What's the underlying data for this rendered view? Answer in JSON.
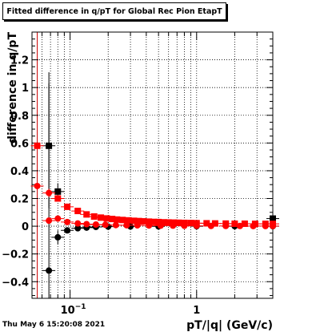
{
  "title": "Fitted difference in q/pT for Global Rec Pion EtapT",
  "timestamp": "Thu May  6 15:20:08 2021",
  "chart_data": {
    "type": "scatter",
    "title": "Fitted difference in q/pT for Global Rec Pion EtapT",
    "xlabel": "pT/|q| (GeV/c)",
    "ylabel": "difference in q/pT",
    "x_scale": "log",
    "xlim": [
      0.05,
      4.0
    ],
    "ylim": [
      -0.52,
      1.4
    ],
    "y_ticks": [
      -0.4,
      -0.2,
      0,
      0.2,
      0.4,
      0.6,
      0.8,
      1,
      1.2
    ],
    "y_tick_labels": [
      "−0.4",
      "−0.2",
      "0",
      "0.2",
      "0.4",
      "0.6",
      "0.8",
      "1",
      "1.2"
    ],
    "x_major_ticks": [
      0.1,
      1
    ],
    "x_major_tick_labels": [
      "10−1",
      "1"
    ],
    "vertical_line_x": 0.055,
    "grid": true,
    "colors": {
      "black": "#000000",
      "red": "#ff0000",
      "vline": "#cc0000"
    },
    "series": [
      {
        "marker": "square",
        "color": "#000000",
        "points": [
          {
            "x": 0.068,
            "y": 0.58,
            "err": 0.45
          },
          {
            "x": 0.08,
            "y": 0.25,
            "err": 0.06
          },
          {
            "x": 4.0,
            "y": 0.055,
            "err": 0.01
          }
        ]
      },
      {
        "marker": "circle",
        "color": "#000000",
        "points": [
          {
            "x": 0.068,
            "y": -0.32,
            "err": 1.43
          },
          {
            "x": 0.08,
            "y": -0.08,
            "err": 0.05
          },
          {
            "x": 0.095,
            "y": -0.03,
            "err": 0.02
          },
          {
            "x": 0.115,
            "y": -0.015,
            "err": 0.01
          },
          {
            "x": 0.135,
            "y": -0.01,
            "err": 0.005
          },
          {
            "x": 0.16,
            "y": -0.005,
            "err": 0.005
          },
          {
            "x": 0.2,
            "y": -0.003,
            "err": 0.003
          },
          {
            "x": 0.3,
            "y": -0.002,
            "err": 0.002
          },
          {
            "x": 0.5,
            "y": -0.001,
            "err": 0.001
          },
          {
            "x": 1.0,
            "y": 0.0,
            "err": 0.001
          },
          {
            "x": 2.0,
            "y": 0.0,
            "err": 0.001
          },
          {
            "x": 4.0,
            "y": 0.0,
            "err": 0.001
          }
        ]
      },
      {
        "marker": "square",
        "color": "#ff0000",
        "points": [
          {
            "x": 0.055,
            "y": 0.58,
            "err": 0.02
          },
          {
            "x": 0.08,
            "y": 0.2,
            "err": 0.02
          },
          {
            "x": 0.095,
            "y": 0.14,
            "err": 0.015
          },
          {
            "x": 0.115,
            "y": 0.11,
            "err": 0.01
          },
          {
            "x": 0.135,
            "y": 0.085,
            "err": 0.01
          },
          {
            "x": 0.155,
            "y": 0.07,
            "err": 0.008
          },
          {
            "x": 0.175,
            "y": 0.062,
            "err": 0.006
          },
          {
            "x": 0.195,
            "y": 0.056,
            "err": 0.005
          },
          {
            "x": 0.215,
            "y": 0.052,
            "err": 0.005
          },
          {
            "x": 0.235,
            "y": 0.048,
            "err": 0.004
          },
          {
            "x": 0.26,
            "y": 0.045,
            "err": 0.004
          },
          {
            "x": 0.29,
            "y": 0.042,
            "err": 0.004
          },
          {
            "x": 0.32,
            "y": 0.039,
            "err": 0.003
          },
          {
            "x": 0.35,
            "y": 0.037,
            "err": 0.003
          },
          {
            "x": 0.38,
            "y": 0.035,
            "err": 0.003
          },
          {
            "x": 0.42,
            "y": 0.033,
            "err": 0.003
          },
          {
            "x": 0.46,
            "y": 0.031,
            "err": 0.003
          },
          {
            "x": 0.5,
            "y": 0.03,
            "err": 0.002
          },
          {
            "x": 0.55,
            "y": 0.028,
            "err": 0.002
          },
          {
            "x": 0.6,
            "y": 0.027,
            "err": 0.002
          },
          {
            "x": 0.66,
            "y": 0.026,
            "err": 0.002
          },
          {
            "x": 0.72,
            "y": 0.025,
            "err": 0.002
          },
          {
            "x": 0.8,
            "y": 0.024,
            "err": 0.002
          },
          {
            "x": 0.9,
            "y": 0.023,
            "err": 0.002
          },
          {
            "x": 1.0,
            "y": 0.022,
            "err": 0.002
          },
          {
            "x": 1.2,
            "y": 0.021,
            "err": 0.002
          },
          {
            "x": 1.4,
            "y": 0.02,
            "err": 0.002
          },
          {
            "x": 1.7,
            "y": 0.019,
            "err": 0.002
          },
          {
            "x": 2.0,
            "y": 0.018,
            "err": 0.002
          },
          {
            "x": 2.4,
            "y": 0.018,
            "err": 0.002
          },
          {
            "x": 2.9,
            "y": 0.017,
            "err": 0.002
          },
          {
            "x": 3.5,
            "y": 0.017,
            "err": 0.002
          },
          {
            "x": 4.0,
            "y": 0.017,
            "err": 0.002
          }
        ]
      },
      {
        "marker": "circle",
        "color": "#ff0000",
        "points": [
          {
            "x": 0.055,
            "y": 0.29,
            "err": 0.02
          },
          {
            "x": 0.068,
            "y": 0.24,
            "err": 0.03
          },
          {
            "x": 0.068,
            "y": 0.04,
            "err": 0.02
          },
          {
            "x": 0.08,
            "y": 0.055,
            "err": 0.015
          },
          {
            "x": 0.095,
            "y": 0.03,
            "err": 0.01
          },
          {
            "x": 0.115,
            "y": 0.02,
            "err": 0.008
          },
          {
            "x": 0.135,
            "y": 0.015,
            "err": 0.006
          },
          {
            "x": 0.16,
            "y": 0.012,
            "err": 0.005
          },
          {
            "x": 0.19,
            "y": 0.01,
            "err": 0.004
          },
          {
            "x": 0.23,
            "y": 0.008,
            "err": 0.003
          },
          {
            "x": 0.28,
            "y": 0.007,
            "err": 0.003
          },
          {
            "x": 0.34,
            "y": 0.006,
            "err": 0.002
          },
          {
            "x": 0.42,
            "y": 0.005,
            "err": 0.002
          },
          {
            "x": 0.52,
            "y": 0.004,
            "err": 0.002
          },
          {
            "x": 0.65,
            "y": 0.004,
            "err": 0.002
          },
          {
            "x": 0.8,
            "y": 0.003,
            "err": 0.002
          },
          {
            "x": 1.0,
            "y": 0.003,
            "err": 0.001
          },
          {
            "x": 1.3,
            "y": 0.002,
            "err": 0.001
          },
          {
            "x": 1.7,
            "y": 0.002,
            "err": 0.001
          },
          {
            "x": 2.2,
            "y": 0.002,
            "err": 0.001
          },
          {
            "x": 2.8,
            "y": 0.001,
            "err": 0.001
          },
          {
            "x": 3.5,
            "y": 0.001,
            "err": 0.001
          },
          {
            "x": 4.0,
            "y": 0.001,
            "err": 0.001
          }
        ]
      }
    ]
  }
}
